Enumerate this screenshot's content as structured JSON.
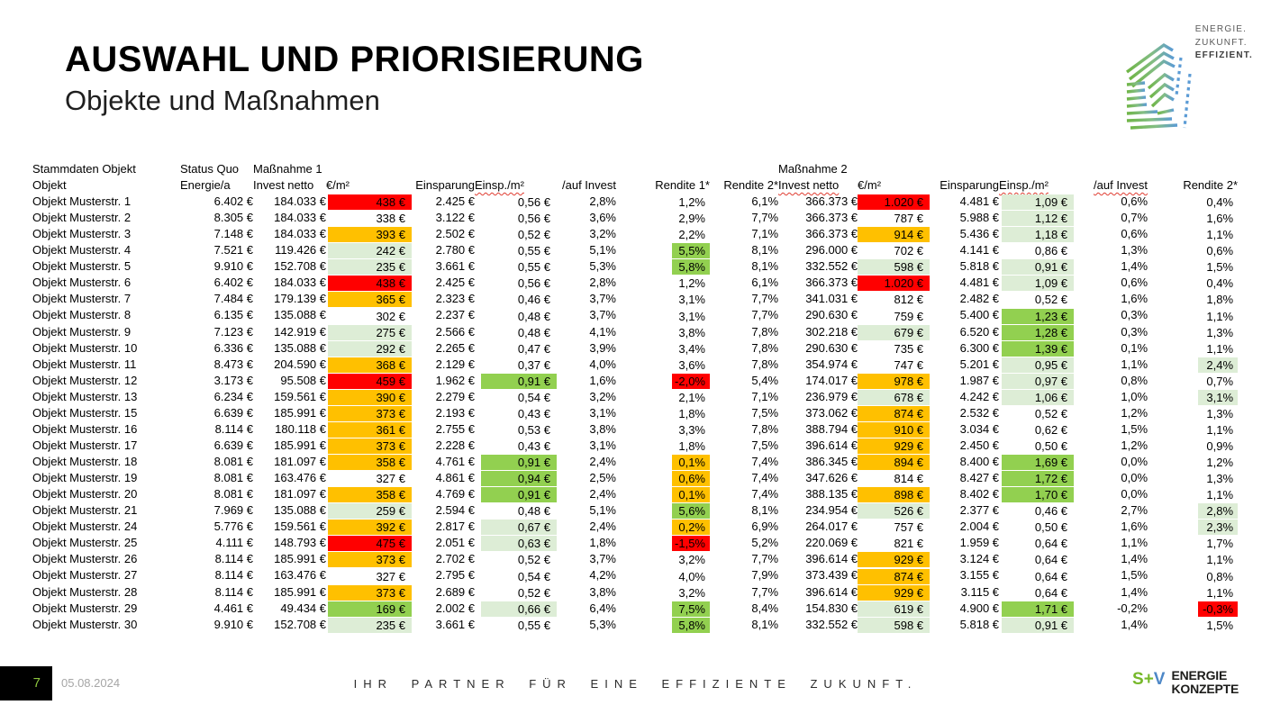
{
  "header": {
    "title": "AUSWAHL UND PRIORISIERUNG",
    "subtitle": "Objekte und Maßnahmen"
  },
  "brand": {
    "line1": "ENERGIE.",
    "line2": "ZUKUNFT.",
    "line3": "EFFIZIENT."
  },
  "table": {
    "group_headers": {
      "stammdaten": "Stammdaten Objekt",
      "status_quo": "Status Quo",
      "massnahme1": "Maßnahme 1",
      "massnahme2": "Maßnahme 2"
    },
    "columns": [
      "Objekt",
      "Energie/a",
      "Invest netto",
      "€/m²",
      "Einsparung",
      "Einsp./m²",
      "/auf Invest",
      "Rendite 1*",
      "Rendite 2*",
      "Invest netto",
      "€/m²",
      "Einsparung",
      "Einsp./m²",
      "/auf Invest",
      "Rendite 2*"
    ],
    "rows": [
      {
        "objekt": "Objekt Musterstr. 1",
        "values": [
          "6.402 €",
          "184.033 €",
          "438 €",
          "2.425 €",
          "0,56 €",
          "2,8%",
          "1,2%",
          "6,1%",
          "366.373 €",
          "1.020 €",
          "4.481 €",
          "1,09 €",
          "0,6%",
          "0,4%"
        ],
        "fills": [
          "",
          "",
          "r",
          "",
          "",
          "",
          "",
          "",
          "",
          "r",
          "",
          "pg",
          "",
          ""
        ]
      },
      {
        "objekt": "Objekt Musterstr. 2",
        "values": [
          "8.305 €",
          "184.033 €",
          "338 €",
          "3.122 €",
          "0,56 €",
          "3,6%",
          "2,9%",
          "7,7%",
          "366.373 €",
          "787 €",
          "5.988 €",
          "1,12 €",
          "0,7%",
          "1,6%"
        ],
        "fills": [
          "",
          "",
          "",
          "",
          "",
          "",
          "",
          "",
          "",
          "",
          "",
          "pg",
          "",
          ""
        ]
      },
      {
        "objekt": "Objekt Musterstr. 3",
        "values": [
          "7.148 €",
          "184.033 €",
          "393 €",
          "2.502 €",
          "0,52 €",
          "3,2%",
          "2,2%",
          "7,1%",
          "366.373 €",
          "914 €",
          "5.436 €",
          "1,18 €",
          "0,6%",
          "1,1%"
        ],
        "fills": [
          "",
          "",
          "o",
          "",
          "",
          "",
          "",
          "",
          "",
          "o",
          "",
          "pg",
          "",
          ""
        ]
      },
      {
        "objekt": "Objekt Musterstr. 4",
        "values": [
          "7.521 €",
          "119.426 €",
          "242 €",
          "2.780 €",
          "0,55 €",
          "5,1%",
          "5,5%",
          "8,1%",
          "296.000 €",
          "702 €",
          "4.141 €",
          "0,86 €",
          "1,3%",
          "0,6%"
        ],
        "fills": [
          "",
          "",
          "pg",
          "",
          "",
          "",
          "g",
          "",
          "",
          "",
          "",
          "",
          "",
          ""
        ]
      },
      {
        "objekt": "Objekt Musterstr. 5",
        "values": [
          "9.910 €",
          "152.708 €",
          "235 €",
          "3.661 €",
          "0,55 €",
          "5,3%",
          "5,8%",
          "8,1%",
          "332.552 €",
          "598 €",
          "5.818 €",
          "0,91 €",
          "1,4%",
          "1,5%"
        ],
        "fills": [
          "",
          "",
          "pg",
          "",
          "",
          "",
          "g",
          "",
          "",
          "pg",
          "",
          "pg",
          "",
          ""
        ]
      },
      {
        "objekt": "Objekt Musterstr. 6",
        "values": [
          "6.402 €",
          "184.033 €",
          "438 €",
          "2.425 €",
          "0,56 €",
          "2,8%",
          "1,2%",
          "6,1%",
          "366.373 €",
          "1.020 €",
          "4.481 €",
          "1,09 €",
          "0,6%",
          "0,4%"
        ],
        "fills": [
          "",
          "",
          "r",
          "",
          "",
          "",
          "",
          "",
          "",
          "r",
          "",
          "pg",
          "",
          ""
        ]
      },
      {
        "objekt": "Objekt Musterstr. 7",
        "values": [
          "7.484 €",
          "179.139 €",
          "365 €",
          "2.323 €",
          "0,46 €",
          "3,7%",
          "3,1%",
          "7,7%",
          "341.031 €",
          "812 €",
          "2.482 €",
          "0,52 €",
          "1,6%",
          "1,8%"
        ],
        "fills": [
          "",
          "",
          "o",
          "",
          "",
          "",
          "",
          "",
          "",
          "",
          "",
          "",
          "",
          ""
        ]
      },
      {
        "objekt": "Objekt Musterstr. 8",
        "values": [
          "6.135 €",
          "135.088 €",
          "302 €",
          "2.237 €",
          "0,48 €",
          "3,7%",
          "3,1%",
          "7,7%",
          "290.630 €",
          "759 €",
          "5.400 €",
          "1,23 €",
          "0,3%",
          "1,1%"
        ],
        "fills": [
          "",
          "",
          "",
          "",
          "",
          "",
          "",
          "",
          "",
          "",
          "",
          "g",
          "",
          ""
        ]
      },
      {
        "objekt": "Objekt Musterstr. 9",
        "values": [
          "7.123 €",
          "142.919 €",
          "275 €",
          "2.566 €",
          "0,48 €",
          "4,1%",
          "3,8%",
          "7,8%",
          "302.218 €",
          "679 €",
          "6.520 €",
          "1,28 €",
          "0,3%",
          "1,3%"
        ],
        "fills": [
          "",
          "",
          "pg",
          "",
          "",
          "",
          "",
          "",
          "",
          "pg",
          "",
          "g",
          "",
          ""
        ]
      },
      {
        "objekt": "Objekt Musterstr. 10",
        "values": [
          "6.336 €",
          "135.088 €",
          "292 €",
          "2.265 €",
          "0,47 €",
          "3,9%",
          "3,4%",
          "7,8%",
          "290.630 €",
          "735 €",
          "6.300 €",
          "1,39 €",
          "0,1%",
          "1,1%"
        ],
        "fills": [
          "",
          "",
          "pg",
          "",
          "",
          "",
          "",
          "",
          "",
          "",
          "",
          "g",
          "",
          ""
        ]
      },
      {
        "objekt": "Objekt Musterstr. 11",
        "values": [
          "8.473 €",
          "204.590 €",
          "368 €",
          "2.129 €",
          "0,37 €",
          "4,0%",
          "3,6%",
          "7,8%",
          "354.974 €",
          "747 €",
          "5.201 €",
          "0,95 €",
          "1,1%",
          "2,4%"
        ],
        "fills": [
          "",
          "",
          "o",
          "",
          "",
          "",
          "",
          "",
          "",
          "",
          "",
          "pg",
          "",
          "pg"
        ]
      },
      {
        "objekt": "Objekt Musterstr. 12",
        "values": [
          "3.173 €",
          "95.508 €",
          "459 €",
          "1.962 €",
          "0,91 €",
          "1,6%",
          "-2,0%",
          "5,4%",
          "174.017 €",
          "978 €",
          "1.987 €",
          "0,97 €",
          "0,8%",
          "0,7%"
        ],
        "fills": [
          "",
          "",
          "r",
          "",
          "g",
          "",
          "r",
          "",
          "",
          "o",
          "",
          "pg",
          "",
          ""
        ]
      },
      {
        "objekt": "Objekt Musterstr. 13",
        "values": [
          "6.234 €",
          "159.561 €",
          "390 €",
          "2.279 €",
          "0,54 €",
          "3,2%",
          "2,1%",
          "7,1%",
          "236.979 €",
          "678 €",
          "4.242 €",
          "1,06 €",
          "1,0%",
          "3,1%"
        ],
        "fills": [
          "",
          "",
          "o",
          "",
          "",
          "",
          "",
          "",
          "",
          "pg",
          "",
          "pg",
          "",
          "pg"
        ]
      },
      {
        "objekt": "Objekt Musterstr. 15",
        "values": [
          "6.639 €",
          "185.991 €",
          "373 €",
          "2.193 €",
          "0,43 €",
          "3,1%",
          "1,8%",
          "7,5%",
          "373.062 €",
          "874 €",
          "2.532 €",
          "0,52 €",
          "1,2%",
          "1,3%"
        ],
        "fills": [
          "",
          "",
          "o",
          "",
          "",
          "",
          "",
          "",
          "",
          "o",
          "",
          "",
          "",
          ""
        ]
      },
      {
        "objekt": "Objekt Musterstr. 16",
        "values": [
          "8.114 €",
          "180.118 €",
          "361 €",
          "2.755 €",
          "0,53 €",
          "3,8%",
          "3,3%",
          "7,8%",
          "388.794 €",
          "910 €",
          "3.034 €",
          "0,62 €",
          "1,5%",
          "1,1%"
        ],
        "fills": [
          "",
          "",
          "o",
          "",
          "",
          "",
          "",
          "",
          "",
          "o",
          "",
          "",
          "",
          ""
        ]
      },
      {
        "objekt": "Objekt Musterstr. 17",
        "values": [
          "6.639 €",
          "185.991 €",
          "373 €",
          "2.228 €",
          "0,43 €",
          "3,1%",
          "1,8%",
          "7,5%",
          "396.614 €",
          "929 €",
          "2.450 €",
          "0,50 €",
          "1,2%",
          "0,9%"
        ],
        "fills": [
          "",
          "",
          "o",
          "",
          "",
          "",
          "",
          "",
          "",
          "o",
          "",
          "",
          "",
          ""
        ]
      },
      {
        "objekt": "Objekt Musterstr. 18",
        "values": [
          "8.081 €",
          "181.097 €",
          "358 €",
          "4.761 €",
          "0,91 €",
          "2,4%",
          "0,1%",
          "7,4%",
          "386.345 €",
          "894 €",
          "8.400 €",
          "1,69 €",
          "0,0%",
          "1,2%"
        ],
        "fills": [
          "",
          "",
          "o",
          "",
          "g",
          "",
          "o",
          "",
          "",
          "o",
          "",
          "g",
          "",
          ""
        ]
      },
      {
        "objekt": "Objekt Musterstr. 19",
        "values": [
          "8.081 €",
          "163.476 €",
          "327 €",
          "4.861 €",
          "0,94 €",
          "2,5%",
          "0,6%",
          "7,4%",
          "347.626 €",
          "814 €",
          "8.427 €",
          "1,72 €",
          "0,0%",
          "1,3%"
        ],
        "fills": [
          "",
          "",
          "",
          "",
          "g",
          "",
          "o",
          "",
          "",
          "",
          "",
          "g",
          "",
          ""
        ]
      },
      {
        "objekt": "Objekt Musterstr. 20",
        "values": [
          "8.081 €",
          "181.097 €",
          "358 €",
          "4.769 €",
          "0,91 €",
          "2,4%",
          "0,1%",
          "7,4%",
          "388.135 €",
          "898 €",
          "8.402 €",
          "1,70 €",
          "0,0%",
          "1,1%"
        ],
        "fills": [
          "",
          "",
          "o",
          "",
          "g",
          "",
          "o",
          "",
          "",
          "o",
          "",
          "g",
          "",
          ""
        ]
      },
      {
        "objekt": "Objekt Musterstr. 21",
        "values": [
          "7.969 €",
          "135.088 €",
          "259 €",
          "2.594 €",
          "0,48 €",
          "5,1%",
          "5,6%",
          "8,1%",
          "234.954 €",
          "526 €",
          "2.377 €",
          "0,46 €",
          "2,7%",
          "2,8%"
        ],
        "fills": [
          "",
          "",
          "pg",
          "",
          "",
          "",
          "g",
          "",
          "",
          "pg",
          "",
          "",
          "",
          "pg"
        ]
      },
      {
        "objekt": "Objekt Musterstr. 24",
        "values": [
          "5.776 €",
          "159.561 €",
          "392 €",
          "2.817 €",
          "0,67 €",
          "2,4%",
          "0,2%",
          "6,9%",
          "264.017 €",
          "757 €",
          "2.004 €",
          "0,50 €",
          "1,6%",
          "2,3%"
        ],
        "fills": [
          "",
          "",
          "o",
          "",
          "pg",
          "",
          "o",
          "",
          "",
          "",
          "",
          "",
          "",
          "pg"
        ]
      },
      {
        "objekt": "Objekt Musterstr. 25",
        "values": [
          "4.111 €",
          "148.793 €",
          "475 €",
          "2.051 €",
          "0,63 €",
          "1,8%",
          "-1,5%",
          "5,2%",
          "220.069 €",
          "821 €",
          "1.959 €",
          "0,64 €",
          "1,1%",
          "1,7%"
        ],
        "fills": [
          "",
          "",
          "r",
          "",
          "pg",
          "",
          "r",
          "",
          "",
          "",
          "",
          "",
          "",
          ""
        ]
      },
      {
        "objekt": "Objekt Musterstr. 26",
        "values": [
          "8.114 €",
          "185.991 €",
          "373 €",
          "2.702 €",
          "0,52 €",
          "3,7%",
          "3,2%",
          "7,7%",
          "396.614 €",
          "929 €",
          "3.124 €",
          "0,64 €",
          "1,4%",
          "1,1%"
        ],
        "fills": [
          "",
          "",
          "o",
          "",
          "",
          "",
          "",
          "",
          "",
          "o",
          "",
          "",
          "",
          ""
        ]
      },
      {
        "objekt": "Objekt Musterstr. 27",
        "values": [
          "8.114 €",
          "163.476 €",
          "327 €",
          "2.795 €",
          "0,54 €",
          "4,2%",
          "4,0%",
          "7,9%",
          "373.439 €",
          "874 €",
          "3.155 €",
          "0,64 €",
          "1,5%",
          "0,8%"
        ],
        "fills": [
          "",
          "",
          "",
          "",
          "",
          "",
          "",
          "",
          "",
          "o",
          "",
          "",
          "",
          ""
        ]
      },
      {
        "objekt": "Objekt Musterstr. 28",
        "values": [
          "8.114 €",
          "185.991 €",
          "373 €",
          "2.689 €",
          "0,52 €",
          "3,8%",
          "3,2%",
          "7,7%",
          "396.614 €",
          "929 €",
          "3.115 €",
          "0,64 €",
          "1,4%",
          "1,1%"
        ],
        "fills": [
          "",
          "",
          "o",
          "",
          "",
          "",
          "",
          "",
          "",
          "o",
          "",
          "",
          "",
          ""
        ]
      },
      {
        "objekt": "Objekt Musterstr. 29",
        "values": [
          "4.461 €",
          "49.434 €",
          "169 €",
          "2.002 €",
          "0,66 €",
          "6,4%",
          "7,5%",
          "8,4%",
          "154.830 €",
          "619 €",
          "4.900 €",
          "1,71 €",
          "-0,2%",
          "-0,3%"
        ],
        "fills": [
          "",
          "",
          "g",
          "",
          "pg",
          "",
          "g",
          "",
          "",
          "pg",
          "",
          "g",
          "",
          "r"
        ]
      },
      {
        "objekt": "Objekt Musterstr. 30",
        "values": [
          "9.910 €",
          "152.708 €",
          "235 €",
          "3.661 €",
          "0,55 €",
          "5,3%",
          "5,8%",
          "8,1%",
          "332.552 €",
          "598 €",
          "5.818 €",
          "0,91 €",
          "1,4%",
          "1,5%"
        ],
        "fills": [
          "",
          "",
          "pg",
          "",
          "",
          "",
          "g",
          "",
          "",
          "pg",
          "",
          "pg",
          "",
          ""
        ]
      }
    ]
  },
  "footer": {
    "page": "7",
    "date": "05.08.2024",
    "tagline": "IHR PARTNER FÜR EINE EFFIZIENTE ZUKUNFT.",
    "logo": {
      "s": "S",
      "plus": "+",
      "v": "V",
      "line1": "ENERGIE",
      "line2": "KONZEPTE"
    }
  },
  "colors": {
    "red": "#FF0000",
    "orange": "#FFC000",
    "green": "#92D050",
    "pale_green": "#DDEDD6",
    "accent_green": "#8DC63F",
    "sv_green": "#76B82A",
    "sv_blue": "#4D87C7"
  }
}
